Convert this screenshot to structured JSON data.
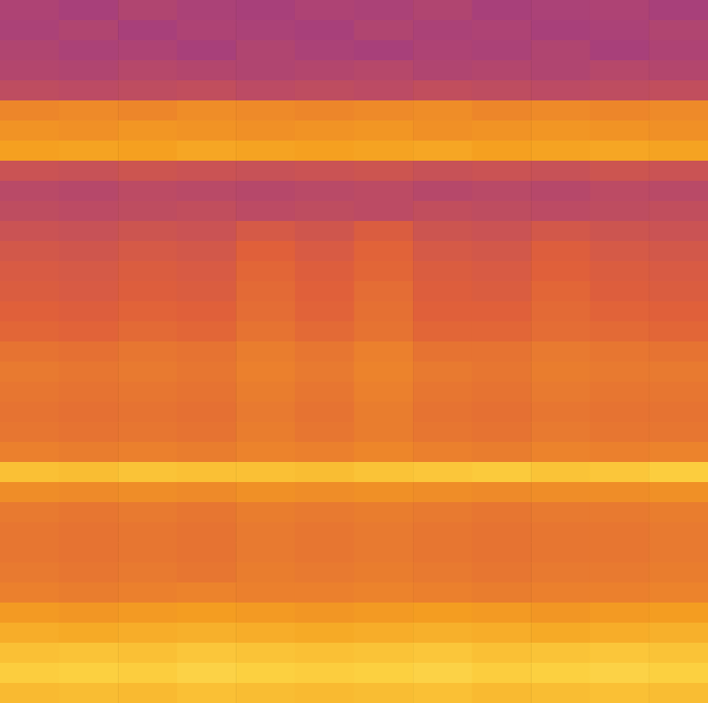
{
  "chart_data": {
    "type": "heatmap",
    "tick_labels": false,
    "color_range": [
      0,
      100
    ],
    "values": [
      [
        32,
        30,
        33,
        31,
        30,
        32,
        31,
        33,
        30,
        31,
        32,
        30
      ],
      [
        31,
        33,
        30,
        32,
        31,
        30,
        33,
        31,
        32,
        30,
        31,
        33
      ],
      [
        33,
        31,
        32,
        30,
        33,
        31,
        30,
        32,
        31,
        33,
        30,
        32
      ],
      [
        34,
        33,
        35,
        34,
        33,
        34,
        35,
        33,
        34,
        33,
        35,
        34
      ],
      [
        38,
        37,
        38,
        39,
        37,
        38,
        37,
        39,
        38,
        37,
        38,
        39
      ],
      [
        62,
        63,
        62,
        64,
        63,
        62,
        63,
        64,
        62,
        63,
        62,
        63
      ],
      [
        66,
        65,
        67,
        66,
        65,
        66,
        67,
        65,
        66,
        67,
        66,
        65
      ],
      [
        70,
        71,
        70,
        72,
        71,
        70,
        71,
        72,
        70,
        71,
        72,
        71
      ],
      [
        42,
        41,
        43,
        42,
        41,
        42,
        43,
        41,
        42,
        41,
        43,
        42
      ],
      [
        36,
        35,
        37,
        36,
        35,
        36,
        37,
        35,
        36,
        35,
        37,
        36
      ],
      [
        38,
        37,
        38,
        39,
        37,
        38,
        37,
        39,
        38,
        37,
        38,
        39
      ],
      [
        42,
        41,
        43,
        42,
        46,
        44,
        48,
        43,
        42,
        45,
        43,
        42
      ],
      [
        45,
        44,
        46,
        45,
        50,
        47,
        51,
        46,
        45,
        49,
        46,
        45
      ],
      [
        47,
        46,
        48,
        47,
        52,
        49,
        52,
        48,
        47,
        50,
        48,
        47
      ],
      [
        48,
        47,
        49,
        48,
        53,
        50,
        54,
        49,
        48,
        52,
        49,
        48
      ],
      [
        50,
        49,
        51,
        50,
        54,
        51,
        55,
        50,
        50,
        53,
        51,
        50
      ],
      [
        52,
        51,
        53,
        52,
        56,
        53,
        56,
        52,
        52,
        54,
        53,
        52
      ],
      [
        56,
        55,
        57,
        56,
        59,
        57,
        60,
        56,
        56,
        58,
        57,
        56
      ],
      [
        58,
        57,
        58,
        57,
        60,
        58,
        61,
        58,
        57,
        59,
        58,
        58
      ],
      [
        57,
        56,
        57,
        56,
        59,
        57,
        60,
        57,
        56,
        58,
        57,
        57
      ],
      [
        56,
        55,
        56,
        55,
        58,
        56,
        59,
        56,
        55,
        57,
        56,
        56
      ],
      [
        57,
        56,
        57,
        56,
        59,
        57,
        59,
        57,
        56,
        58,
        57,
        57
      ],
      [
        60,
        59,
        60,
        59,
        61,
        60,
        62,
        60,
        59,
        61,
        60,
        61
      ],
      [
        80,
        79,
        81,
        80,
        80,
        79,
        81,
        82,
        83,
        81,
        82,
        84
      ],
      [
        64,
        63,
        64,
        63,
        65,
        64,
        65,
        64,
        63,
        64,
        64,
        65
      ],
      [
        58,
        57,
        58,
        57,
        59,
        58,
        59,
        58,
        57,
        58,
        58,
        59
      ],
      [
        57,
        56,
        57,
        56,
        58,
        57,
        58,
        57,
        56,
        57,
        57,
        58
      ],
      [
        57,
        56,
        57,
        56,
        58,
        57,
        58,
        57,
        56,
        57,
        57,
        58
      ],
      [
        58,
        57,
        58,
        57,
        59,
        58,
        59,
        58,
        57,
        58,
        58,
        59
      ],
      [
        60,
        59,
        60,
        61,
        60,
        60,
        61,
        60,
        59,
        60,
        60,
        61
      ],
      [
        68,
        67,
        68,
        69,
        68,
        67,
        68,
        69,
        68,
        67,
        68,
        69
      ],
      [
        74,
        73,
        74,
        75,
        74,
        73,
        74,
        75,
        74,
        73,
        74,
        75
      ],
      [
        80,
        81,
        80,
        82,
        81,
        80,
        81,
        82,
        80,
        81,
        82,
        81
      ],
      [
        84,
        85,
        84,
        86,
        85,
        84,
        85,
        86,
        84,
        85,
        86,
        85
      ],
      [
        78,
        79,
        78,
        80,
        79,
        78,
        79,
        80,
        78,
        79,
        80,
        79
      ]
    ]
  }
}
